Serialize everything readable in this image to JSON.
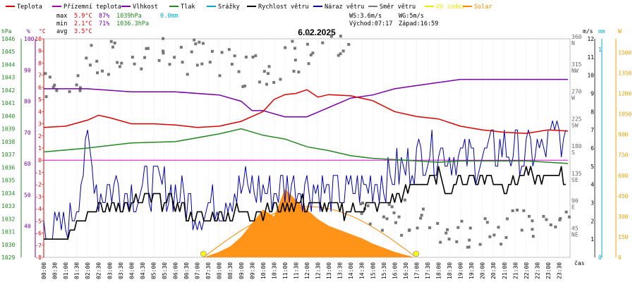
{
  "legend": [
    {
      "label": "Teplota",
      "color": "#dd0000"
    },
    {
      "label": "Přízemní teplota",
      "color": "#aa00aa"
    },
    {
      "label": "Vlhkost",
      "color": "#7700aa"
    },
    {
      "label": "Tlak",
      "color": "#228822"
    },
    {
      "label": "Srážky",
      "color": "#00aacc"
    },
    {
      "label": "Rychlost větru",
      "color": "#000000"
    },
    {
      "label": "Náraz větru",
      "color": "#0000aa"
    },
    {
      "label": "Směr větru",
      "color": "#777777"
    },
    {
      "label": "UV index",
      "color": "#e8e800"
    },
    {
      "label": "Solar",
      "color": "#ff8800"
    }
  ],
  "stats": {
    "max_label": "max",
    "max_temp": "5.9°C",
    "max_hum": "87%",
    "max_press": "1039hPa",
    "rain": "0.0mm",
    "min_label": "min",
    "min_temp": "2.1°C",
    "min_hum": "71%",
    "min_press": "1036.3hPa",
    "avg_label": "avg",
    "avg_temp": "3.5°C"
  },
  "date": "6.02.2025",
  "wind_stats": {
    "ws": "WS:3.6m/s",
    "wg": "WG:5m/s"
  },
  "sun": {
    "sunrise": "Východ:07:17",
    "sunset": "Západ:16:59"
  },
  "axis_units": {
    "hpa": "hPa",
    "pct": "%",
    "degc": "°C",
    "ms": "m/s",
    "mm": "mm",
    "w": "W",
    "time": "čas"
  },
  "chart_data": {
    "type": "line",
    "title": "6.02.2025",
    "xlabel": "čas",
    "x_ticks": [
      "00:00",
      "00:30",
      "01:00",
      "01:30",
      "02:00",
      "02:30",
      "03:00",
      "03:30",
      "04:00",
      "04:30",
      "05:00",
      "05:30",
      "06:00",
      "06:30",
      "07:00",
      "07:30",
      "08:00",
      "08:30",
      "09:00",
      "09:30",
      "10:00",
      "10:30",
      "11:00",
      "11:30",
      "12:00",
      "12:30",
      "13:00",
      "13:30",
      "14:00",
      "14:30",
      "15:00",
      "15:30",
      "16:00",
      "16:30",
      "17:00",
      "17:30",
      "18:00",
      "18:30",
      "19:00",
      "19:30",
      "20:00",
      "20:30",
      "21:00",
      "21:30",
      "22:00",
      "22:30",
      "23:00",
      "23:30"
    ],
    "axes": {
      "pressure_hPa": {
        "range": [
          1029,
          1046
        ],
        "ticks": [
          1029,
          1030,
          1031,
          1032,
          1033,
          1034,
          1035,
          1036,
          1037,
          1038,
          1039,
          1040,
          1041,
          1042,
          1043,
          1044,
          1045,
          1046
        ]
      },
      "humidity_pct": {
        "range": [
          30,
          100
        ],
        "ticks": [
          40,
          50,
          60,
          70,
          80,
          90,
          100
        ]
      },
      "temp_C": {
        "range": [
          -8,
          10
        ],
        "ticks": [
          -8,
          -7,
          -6,
          -5,
          -4,
          -3,
          -2,
          -1,
          0,
          1,
          2,
          3,
          4,
          5,
          6,
          7,
          8,
          9,
          10
        ]
      },
      "wind_dir_deg": {
        "labels": [
          "45 NE",
          "90 E",
          "135 SE",
          "180 S",
          "225 SW",
          "270 W",
          "315 NW",
          "360 N"
        ]
      },
      "wind_ms": {
        "range": [
          0,
          12
        ],
        "ticks": [
          1,
          2,
          3,
          4,
          5,
          6,
          7,
          8,
          9,
          10,
          11,
          12
        ]
      },
      "rain_mm": {
        "ticks": [
          0,
          1
        ]
      },
      "solar_W": {
        "range": [
          0,
          1600
        ],
        "ticks": [
          0,
          150,
          300,
          450,
          600,
          750,
          900,
          1050,
          1200,
          1350,
          1500
        ]
      }
    },
    "series": [
      {
        "name": "Teplota",
        "unit": "°C",
        "x": [
          0,
          1,
          2,
          2.5,
          3,
          4,
          5,
          6,
          7,
          8,
          9,
          10,
          10.5,
          11,
          11.5,
          12,
          12.5,
          13,
          14,
          15,
          16,
          17,
          18,
          19,
          20,
          21,
          22,
          23,
          23.9
        ],
        "values": [
          2.7,
          2.8,
          3.3,
          3.7,
          3.5,
          3.0,
          3.0,
          2.9,
          2.7,
          2.8,
          3.2,
          4.0,
          5.0,
          5.4,
          5.5,
          5.8,
          5.2,
          5.4,
          5.3,
          4.9,
          4.0,
          3.6,
          3.4,
          2.8,
          2.5,
          2.3,
          2.2,
          2.5,
          2.4
        ]
      },
      {
        "name": "Vlhkost",
        "unit": "%",
        "x": [
          0,
          2,
          4,
          6,
          8,
          9,
          9.5,
          10,
          11,
          12,
          13,
          14,
          15,
          16,
          17,
          18,
          19,
          20,
          21,
          22,
          23,
          23.9
        ],
        "values": [
          84,
          84,
          83,
          83,
          82,
          80,
          77,
          77,
          75,
          75,
          78,
          81,
          82,
          84,
          85,
          86,
          87,
          87,
          87,
          87,
          87,
          87
        ]
      },
      {
        "name": "Tlak",
        "unit": "hPa",
        "x": [
          0,
          2,
          4,
          6,
          8,
          9,
          10,
          11,
          12,
          13,
          14,
          15,
          16,
          17,
          18,
          19,
          20,
          21,
          22,
          23,
          23.9
        ],
        "values": [
          1037.2,
          1037.5,
          1037.9,
          1038.0,
          1038.6,
          1039.0,
          1038.5,
          1038.2,
          1037.6,
          1037.3,
          1036.9,
          1036.7,
          1036.6,
          1036.5,
          1036.4,
          1036.5,
          1036.5,
          1036.5,
          1036.5,
          1036.4,
          1036.3
        ]
      },
      {
        "name": "Přízemní teplota",
        "unit": "°C",
        "x": [
          0,
          23.9
        ],
        "values": [
          0,
          0
        ]
      },
      {
        "name": "Rychlost větru",
        "unit": "m/s",
        "x": [
          0,
          1,
          1.5,
          2,
          3,
          4,
          5,
          6,
          7,
          8,
          9,
          10,
          11,
          12,
          13,
          14,
          15,
          16,
          17,
          18,
          18.5,
          19,
          20,
          21,
          22,
          23,
          23.5,
          23.9
        ],
        "values": [
          1.0,
          1.0,
          2.0,
          2.5,
          2.8,
          3.0,
          3.2,
          3.0,
          2.0,
          2.2,
          2.5,
          2.5,
          2.8,
          3.0,
          2.8,
          2.5,
          2.8,
          3.2,
          4.0,
          4.5,
          3.5,
          4.2,
          4.5,
          4.0,
          4.5,
          4.2,
          5.0,
          3.8
        ]
      },
      {
        "name": "Náraz větru",
        "unit": "m/s",
        "x": [
          0,
          1,
          1.5,
          2,
          2.5,
          3,
          4,
          5,
          6,
          7,
          8,
          9,
          10,
          11,
          12,
          13,
          14,
          15,
          16,
          17,
          18,
          19,
          20,
          21,
          22,
          23,
          23.5,
          23.9
        ],
        "values": [
          1.5,
          1.5,
          3.0,
          6.0,
          3.5,
          4.0,
          3.5,
          4.0,
          3.5,
          2.5,
          3.0,
          3.8,
          3.5,
          4.0,
          4.0,
          3.5,
          3.5,
          4.0,
          4.5,
          5.5,
          6.0,
          5.5,
          5.5,
          6.0,
          5.5,
          6.0,
          7.0,
          5.0
        ]
      },
      {
        "name": "Směr větru",
        "unit": "°",
        "x": [
          0,
          1,
          2,
          3,
          4,
          5,
          6,
          7,
          8,
          9,
          10,
          11,
          12,
          13,
          14,
          15,
          16,
          17,
          18,
          19,
          20,
          21,
          22,
          23
        ],
        "values": [
          280,
          300,
          320,
          330,
          335,
          340,
          330,
          325,
          320,
          310,
          315,
          330,
          345,
          340,
          60,
          70,
          65,
          55,
          45,
          45,
          50,
          50,
          55,
          60
        ]
      },
      {
        "name": "Solar",
        "unit": "W",
        "x": [
          7.3,
          8,
          8.5,
          9,
          9.5,
          10,
          10.5,
          11,
          11.5,
          12,
          12.5,
          13,
          13.5,
          14,
          14.5,
          15,
          16,
          16.9
        ],
        "values": [
          0,
          40,
          80,
          150,
          250,
          350,
          300,
          500,
          420,
          350,
          280,
          230,
          200,
          170,
          140,
          100,
          40,
          0
        ]
      },
      {
        "name": "UV index",
        "unit": "",
        "x": [
          7.3,
          16.9
        ],
        "values": [
          0,
          0
        ]
      }
    ]
  }
}
